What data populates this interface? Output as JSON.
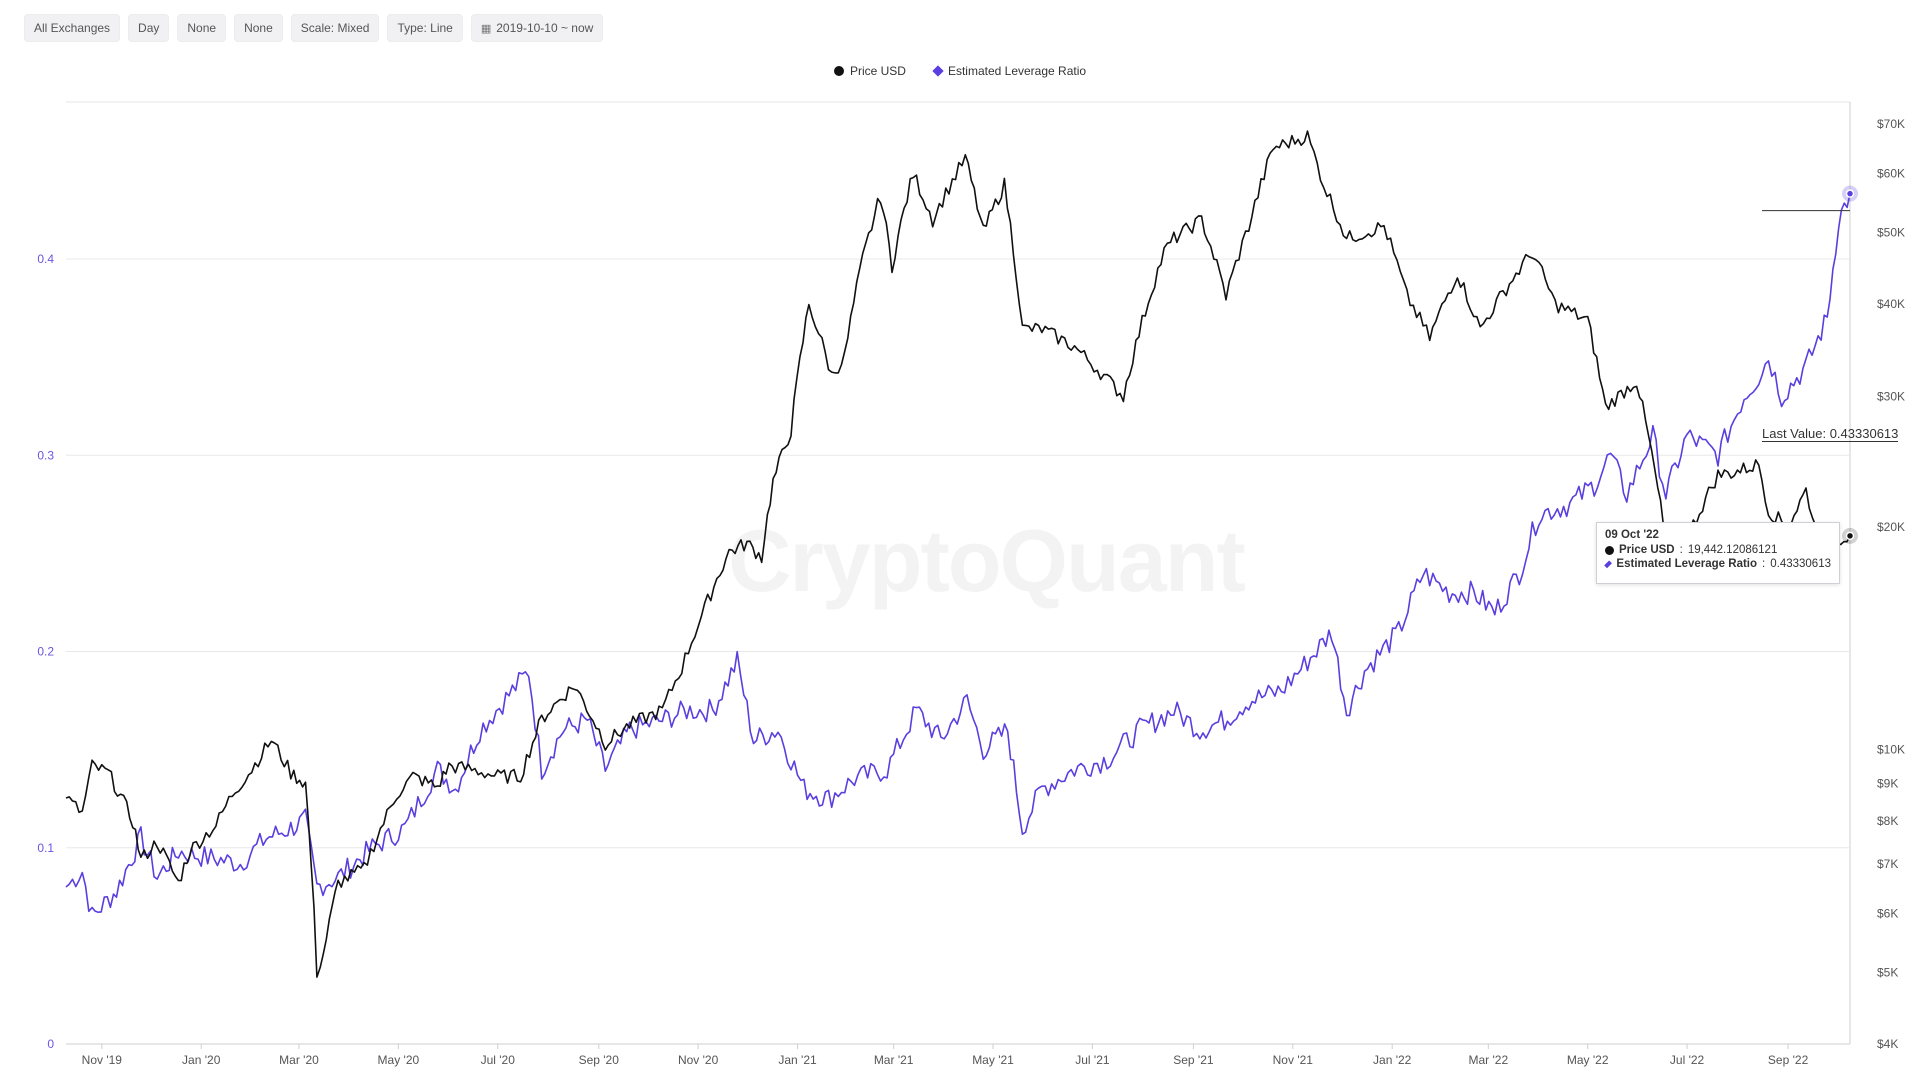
{
  "toolbar": {
    "exchange": "All Exchanges",
    "window": "Day",
    "sma": "None",
    "normalize": "None",
    "scale": "Scale: Mixed",
    "type": "Type: Line",
    "range": "2019-10-10 ~ now"
  },
  "watermark": "CryptoQuant",
  "tooltip": {
    "date": "09 Oct '22",
    "price_label": "Price USD",
    "price_value": "19,442.12086121",
    "ratio_label": "Estimated Leverage Ratio",
    "ratio_value": "0.43330613"
  },
  "last_value": {
    "label": "Last Value",
    "value": "0.43330613"
  },
  "chart_data": {
    "type": "line",
    "title": "",
    "legend_position": "top-center",
    "grid": true,
    "x_ticks": [
      "Nov '19",
      "Jan '20",
      "Mar '20",
      "May '20",
      "Jul '20",
      "Sep '20",
      "Nov '20",
      "Jan '21",
      "Mar '21",
      "May '21",
      "Jul '21",
      "Sep '21",
      "Nov '21",
      "Jan '22",
      "Mar '22",
      "May '22",
      "Jul '22",
      "Sep '22"
    ],
    "y_left": {
      "min": 0,
      "max": 0.48,
      "ticks": [
        0,
        0.1,
        0.2,
        0.3,
        0.4
      ],
      "tick_labels": [
        "0",
        "0.1",
        "0.2",
        "0.3",
        "0.4"
      ]
    },
    "y_right": {
      "scale": "log",
      "min": 4000,
      "max": 75000,
      "ticks": [
        4000,
        5000,
        6000,
        7000,
        8000,
        9000,
        10000,
        20000,
        30000,
        40000,
        50000,
        60000,
        70000
      ],
      "tick_labels": [
        "$4K",
        "$5K",
        "$6K",
        "$7K",
        "$8K",
        "$9K",
        "$10K",
        "$20K",
        "$30K",
        "$40K",
        "$50K",
        "$60K",
        "$70K"
      ]
    },
    "x_range": [
      "2019-10-10",
      "2022-10-09"
    ],
    "series": [
      {
        "name": "Price USD",
        "axis": "right",
        "color": "#111111",
        "points": [
          [
            "2019-10-10",
            8600
          ],
          [
            "2019-10-20",
            8200
          ],
          [
            "2019-10-26",
            9500
          ],
          [
            "2019-11-05",
            9300
          ],
          [
            "2019-11-20",
            8000
          ],
          [
            "2019-11-25",
            7100
          ],
          [
            "2019-12-05",
            7500
          ],
          [
            "2019-12-18",
            6600
          ],
          [
            "2019-12-25",
            7300
          ],
          [
            "2020-01-10",
            7900
          ],
          [
            "2020-01-20",
            8700
          ],
          [
            "2020-02-01",
            9400
          ],
          [
            "2020-02-13",
            10300
          ],
          [
            "2020-02-25",
            9300
          ],
          [
            "2020-03-05",
            9000
          ],
          [
            "2020-03-12",
            5000
          ],
          [
            "2020-03-16",
            5300
          ],
          [
            "2020-03-25",
            6600
          ],
          [
            "2020-04-10",
            6900
          ],
          [
            "2020-04-30",
            8700
          ],
          [
            "2020-05-10",
            9200
          ],
          [
            "2020-05-25",
            8900
          ],
          [
            "2020-06-01",
            9500
          ],
          [
            "2020-06-15",
            9400
          ],
          [
            "2020-07-01",
            9200
          ],
          [
            "2020-07-15",
            9200
          ],
          [
            "2020-07-28",
            11000
          ],
          [
            "2020-08-10",
            11800
          ],
          [
            "2020-08-17",
            12200
          ],
          [
            "2020-09-05",
            10200
          ],
          [
            "2020-09-20",
            10800
          ],
          [
            "2020-10-10",
            11300
          ],
          [
            "2020-10-22",
            12900
          ],
          [
            "2020-11-05",
            15500
          ],
          [
            "2020-11-20",
            18500
          ],
          [
            "2020-12-01",
            19000
          ],
          [
            "2020-12-10",
            18200
          ],
          [
            "2020-12-17",
            23000
          ],
          [
            "2020-12-28",
            27000
          ],
          [
            "2021-01-08",
            40000
          ],
          [
            "2021-01-22",
            32000
          ],
          [
            "2021-01-30",
            34000
          ],
          [
            "2021-02-10",
            46000
          ],
          [
            "2021-02-21",
            56000
          ],
          [
            "2021-02-28",
            45000
          ],
          [
            "2021-03-13",
            60000
          ],
          [
            "2021-03-25",
            52000
          ],
          [
            "2021-04-14",
            63000
          ],
          [
            "2021-04-25",
            50000
          ],
          [
            "2021-05-08",
            58000
          ],
          [
            "2021-05-19",
            37000
          ],
          [
            "2021-05-31",
            37000
          ],
          [
            "2021-06-20",
            35000
          ],
          [
            "2021-07-20",
            30000
          ],
          [
            "2021-08-14",
            47000
          ],
          [
            "2021-08-20",
            49000
          ],
          [
            "2021-09-06",
            52000
          ],
          [
            "2021-09-21",
            41000
          ],
          [
            "2021-10-05",
            51000
          ],
          [
            "2021-10-20",
            65000
          ],
          [
            "2021-11-10",
            67500
          ],
          [
            "2021-11-20",
            58000
          ],
          [
            "2021-12-04",
            49000
          ],
          [
            "2021-12-27",
            51000
          ],
          [
            "2022-01-10",
            41000
          ],
          [
            "2022-01-24",
            36000
          ],
          [
            "2022-02-10",
            44000
          ],
          [
            "2022-02-24",
            37000
          ],
          [
            "2022-03-28",
            47000
          ],
          [
            "2022-04-11",
            40000
          ],
          [
            "2022-05-01",
            38000
          ],
          [
            "2022-05-12",
            29000
          ],
          [
            "2022-05-31",
            31500
          ],
          [
            "2022-06-13",
            22500
          ],
          [
            "2022-06-18",
            19000
          ],
          [
            "2022-07-01",
            19300
          ],
          [
            "2022-07-20",
            23500
          ],
          [
            "2022-07-30",
            23700
          ],
          [
            "2022-08-14",
            24300
          ],
          [
            "2022-08-20",
            21000
          ],
          [
            "2022-09-01",
            20000
          ],
          [
            "2022-09-12",
            22400
          ],
          [
            "2022-09-20",
            19000
          ],
          [
            "2022-10-09",
            19442
          ]
        ]
      },
      {
        "name": "Estimated Leverage Ratio",
        "axis": "left",
        "color": "#5b3ee0",
        "points": [
          [
            "2019-10-10",
            0.08
          ],
          [
            "2019-10-20",
            0.088
          ],
          [
            "2019-10-26",
            0.065
          ],
          [
            "2019-11-10",
            0.078
          ],
          [
            "2019-11-25",
            0.105
          ],
          [
            "2019-12-05",
            0.085
          ],
          [
            "2019-12-18",
            0.098
          ],
          [
            "2020-01-05",
            0.095
          ],
          [
            "2020-01-25",
            0.092
          ],
          [
            "2020-02-10",
            0.105
          ],
          [
            "2020-02-25",
            0.11
          ],
          [
            "2020-03-05",
            0.114
          ],
          [
            "2020-03-12",
            0.08
          ],
          [
            "2020-03-25",
            0.085
          ],
          [
            "2020-04-15",
            0.1
          ],
          [
            "2020-05-05",
            0.11
          ],
          [
            "2020-05-25",
            0.14
          ],
          [
            "2020-06-05",
            0.13
          ],
          [
            "2020-06-20",
            0.16
          ],
          [
            "2020-07-10",
            0.18
          ],
          [
            "2020-07-20",
            0.19
          ],
          [
            "2020-07-28",
            0.14
          ],
          [
            "2020-08-10",
            0.16
          ],
          [
            "2020-08-25",
            0.165
          ],
          [
            "2020-09-05",
            0.14
          ],
          [
            "2020-09-20",
            0.16
          ],
          [
            "2020-10-10",
            0.165
          ],
          [
            "2020-10-25",
            0.17
          ],
          [
            "2020-11-10",
            0.17
          ],
          [
            "2020-11-25",
            0.195
          ],
          [
            "2020-12-05",
            0.155
          ],
          [
            "2020-12-20",
            0.16
          ],
          [
            "2021-01-05",
            0.13
          ],
          [
            "2021-01-20",
            0.125
          ],
          [
            "2021-02-05",
            0.135
          ],
          [
            "2021-02-25",
            0.14
          ],
          [
            "2021-03-15",
            0.17
          ],
          [
            "2021-03-30",
            0.155
          ],
          [
            "2021-04-15",
            0.175
          ],
          [
            "2021-04-25",
            0.15
          ],
          [
            "2021-05-10",
            0.16
          ],
          [
            "2021-05-19",
            0.11
          ],
          [
            "2021-05-31",
            0.13
          ],
          [
            "2021-06-20",
            0.14
          ],
          [
            "2021-07-10",
            0.145
          ],
          [
            "2021-07-30",
            0.16
          ],
          [
            "2021-08-20",
            0.17
          ],
          [
            "2021-09-05",
            0.16
          ],
          [
            "2021-09-20",
            0.165
          ],
          [
            "2021-10-05",
            0.175
          ],
          [
            "2021-10-25",
            0.18
          ],
          [
            "2021-11-10",
            0.195
          ],
          [
            "2021-11-25",
            0.21
          ],
          [
            "2021-12-04",
            0.17
          ],
          [
            "2021-12-15",
            0.19
          ],
          [
            "2022-01-05",
            0.21
          ],
          [
            "2022-01-20",
            0.24
          ],
          [
            "2022-02-05",
            0.23
          ],
          [
            "2022-02-20",
            0.23
          ],
          [
            "2022-03-05",
            0.22
          ],
          [
            "2022-03-20",
            0.24
          ],
          [
            "2022-04-01",
            0.27
          ],
          [
            "2022-04-20",
            0.275
          ],
          [
            "2022-05-05",
            0.285
          ],
          [
            "2022-05-15",
            0.3
          ],
          [
            "2022-05-25",
            0.28
          ],
          [
            "2022-06-10",
            0.31
          ],
          [
            "2022-06-18",
            0.28
          ],
          [
            "2022-07-01",
            0.31
          ],
          [
            "2022-07-20",
            0.3
          ],
          [
            "2022-08-05",
            0.33
          ],
          [
            "2022-08-14",
            0.34
          ],
          [
            "2022-08-20",
            0.35
          ],
          [
            "2022-08-28",
            0.33
          ],
          [
            "2022-09-12",
            0.345
          ],
          [
            "2022-09-25",
            0.37
          ],
          [
            "2022-10-02",
            0.42
          ],
          [
            "2022-10-09",
            0.4333
          ]
        ]
      }
    ]
  }
}
